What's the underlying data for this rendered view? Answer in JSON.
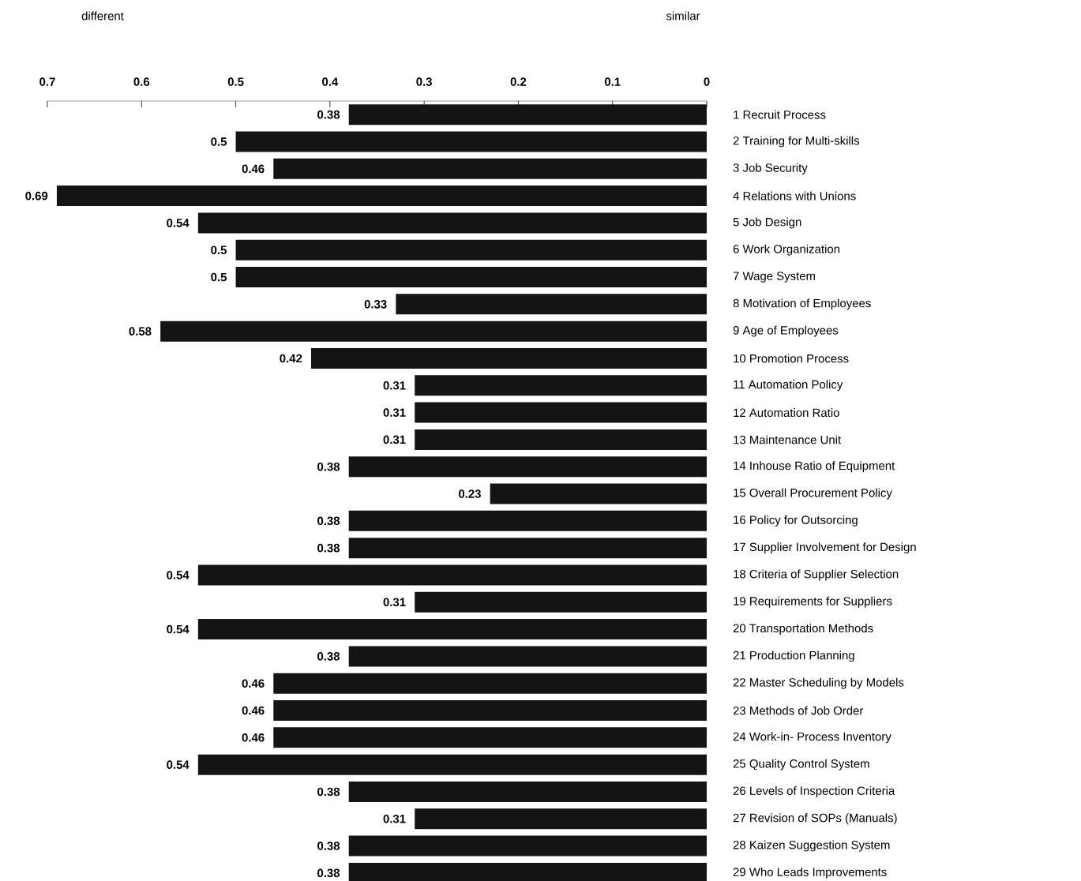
{
  "chart_data": {
    "type": "bar",
    "orientation": "horizontal",
    "annotations": [
      "different",
      "similar"
    ],
    "categories": [
      "1 Recruit Process",
      "2 Training for Multi-skills",
      "3 Job Security",
      "4 Relations with Unions",
      "5 Job Design",
      "6 Work Organization",
      "7 Wage System",
      "8 Motivation of Employees",
      "9 Age of Employees",
      "10 Promotion Process",
      "11 Automation Policy",
      "12 Automation Ratio",
      "13 Maintenance Unit",
      "14 Inhouse Ratio of Equipment",
      "15 Overall Procurement Policy",
      "16 Policy for Outsorcing",
      "17 Supplier Involvement for Design",
      "18 Criteria of Supplier Selection",
      "19 Requirements for Suppliers",
      "20 Transportation Methods",
      "21 Production Planning",
      "22 Master Scheduling by Models",
      "23 Methods of Job Order",
      "24 Work-in- Process Inventory",
      "25 Quality Control System",
      "26 Levels of Inspection Criteria",
      "27 Revision of SOPs (Manuals)",
      "28 Kaizen Suggestion System",
      "29 Who Leads Improvements"
    ],
    "values": [
      0.38,
      0.5,
      0.46,
      0.69,
      0.54,
      0.5,
      0.5,
      0.33,
      0.58,
      0.42,
      0.31,
      0.31,
      0.31,
      0.38,
      0.23,
      0.38,
      0.38,
      0.54,
      0.31,
      0.54,
      0.38,
      0.46,
      0.46,
      0.46,
      0.54,
      0.38,
      0.31,
      0.38,
      0.38
    ],
    "color": "#141414",
    "data_labels": true,
    "xlim": [
      0.7,
      0
    ],
    "xticks": [
      0.7,
      0.6,
      0.5,
      0.4,
      0.3,
      0.2,
      0.1,
      0
    ],
    "grid": false
  }
}
